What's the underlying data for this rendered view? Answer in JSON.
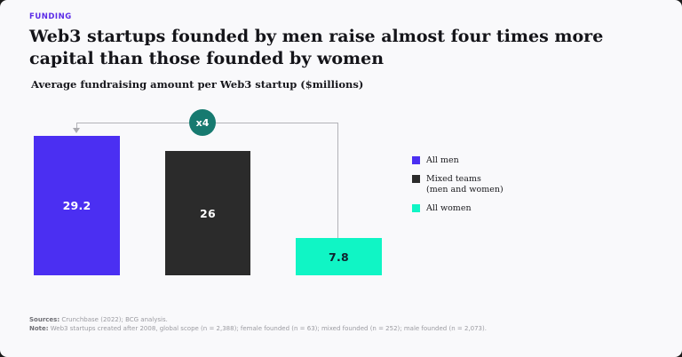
{
  "header": {
    "eyebrow": "FUNDING",
    "title": "Web3 startups founded by men raise almost four times more capital than those founded by women",
    "subtitle": "Average fundraising amount per Web3 startup ($millions)"
  },
  "chart_data": {
    "type": "bar",
    "title": "Average fundraising amount per Web3 startup ($millions)",
    "categories": [
      "All men",
      "Mixed teams (men and women)",
      "All women"
    ],
    "values": [
      29.2,
      26,
      7.8
    ],
    "bar_labels": [
      "29.2",
      "26",
      "7.8"
    ],
    "colors": [
      "#4b2ff2",
      "#2b2b2b",
      "#10f5c5"
    ],
    "label_colors": [
      "#ffffff",
      "#ffffff",
      "#10222e"
    ],
    "xlabel": "",
    "ylabel": "",
    "ylim": [
      0,
      30
    ],
    "grid": false,
    "legend_position": "right",
    "annotation": "x4"
  },
  "annotation": {
    "badge_label": "x4"
  },
  "legend": {
    "items": [
      {
        "label": "All men",
        "sublabel": "",
        "color": "#4b2ff2"
      },
      {
        "label": "Mixed teams",
        "sublabel": "(men and women)",
        "color": "#2b2b2b"
      },
      {
        "label": "All women",
        "sublabel": "",
        "color": "#10f5c5"
      }
    ]
  },
  "footer": {
    "sources_label": "Sources:",
    "sources_text": " Crunchbase (2022); BCG analysis.",
    "note_label": "Note:",
    "note_text": " Web3 startups created after 2008, global scope (n = 2,388); female founded (n = 63); mixed founded (n = 252); male founded (n = 2,073)."
  },
  "colors": {
    "background": "#f9f9fb",
    "accent_purple": "#5b2be8",
    "badge_teal": "#177a70",
    "connector_gray": "#b3b3b8"
  }
}
